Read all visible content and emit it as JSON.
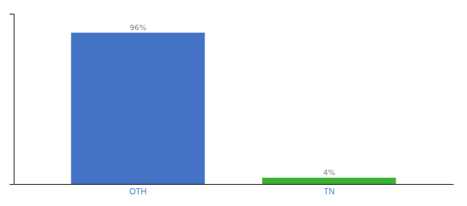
{
  "chart_data": {
    "type": "bar",
    "categories": [
      "OTH",
      "TN"
    ],
    "values": [
      96,
      4
    ],
    "value_labels": [
      "96%",
      "4%"
    ],
    "colors": [
      "#4472c4",
      "#3cb034"
    ],
    "ylim": [
      0,
      108
    ],
    "data_labels": true,
    "tick_labels": "x",
    "grid": false
  }
}
